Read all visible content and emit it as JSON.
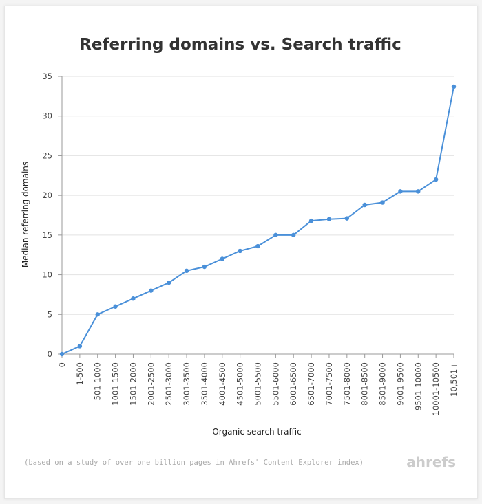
{
  "chart_data": {
    "type": "line",
    "title": "Referring domains vs. Search traffic",
    "xlabel": "Organic search traffic",
    "ylabel": "Median referring domains",
    "ylim": [
      0,
      35
    ],
    "yticks": [
      0,
      5,
      10,
      15,
      20,
      25,
      30,
      35
    ],
    "grid": true,
    "legend": "none",
    "categories": [
      "0",
      "1-500",
      "501-1000",
      "1001-1500",
      "1501-2000",
      "2001-2500",
      "2501-3000",
      "3001-3500",
      "3501-4000",
      "4001-4500",
      "4501-5000",
      "5001-5500",
      "5501-6000",
      "6001-6500",
      "6501-7000",
      "7001-7500",
      "7501-8000",
      "8001-8500",
      "8501-9000",
      "9001-9500",
      "9501-10000",
      "10001-10500",
      "10,501+"
    ],
    "series": [
      {
        "values": [
          0,
          1,
          5,
          6,
          7,
          8,
          9,
          10.5,
          11,
          12,
          13,
          13.6,
          15,
          15,
          16.8,
          17,
          17.1,
          18.8,
          19.1,
          20.5,
          20.5,
          22,
          33.7
        ]
      }
    ],
    "line_color": "#4a90d9"
  },
  "footnote": "(based on a study of over one billion pages in Ahrefs' Content Explorer index)",
  "brand": "ahrefs"
}
